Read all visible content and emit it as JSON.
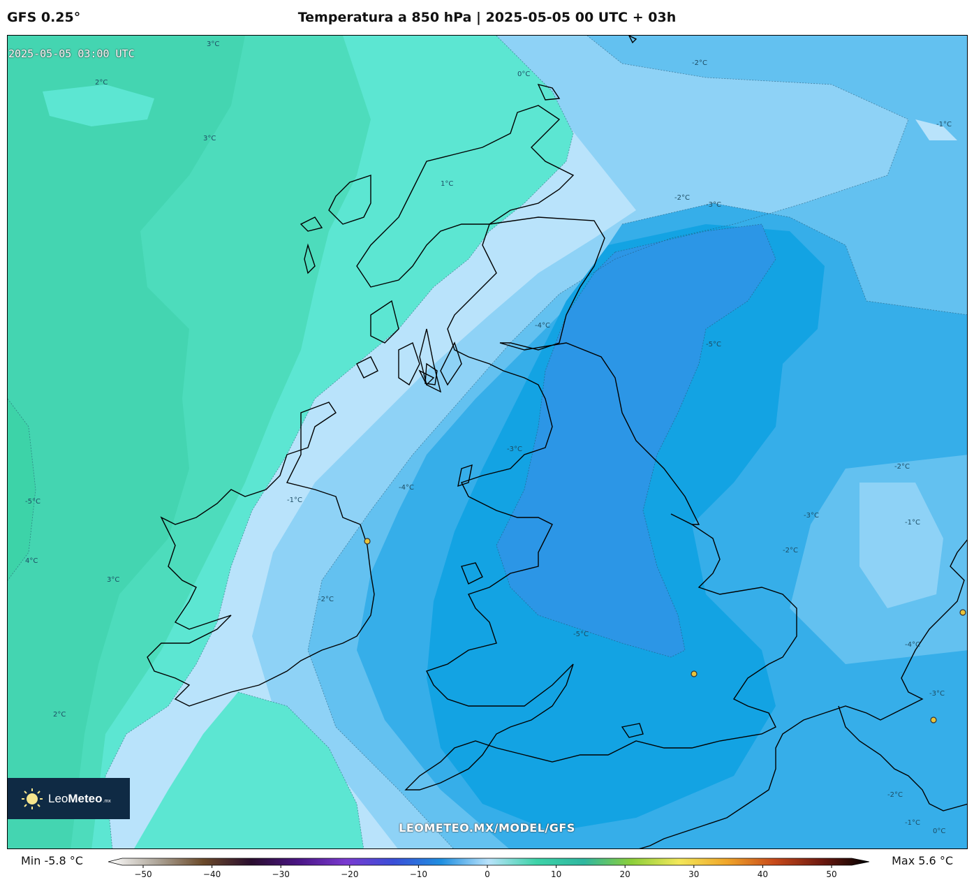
{
  "header": {
    "model": "GFS 0.25°",
    "title": "Temperatura a 850 hPa | 2025-05-05 00 UTC + 03h"
  },
  "map": {
    "valid_time": "2025-05-05 03:00 UTC",
    "watermark": "LEOMETEO.MX/MODEL/GFS",
    "logo": {
      "name_light": "Leo",
      "name_bold": "Meteo",
      "suffix": ".mx"
    },
    "contour_labels": [
      "3°C",
      "2°C",
      "0°C",
      "-2°C",
      "-1°C",
      "3°C",
      "1°C",
      "-2°C",
      "-3°C",
      "-5°C",
      "-4°C",
      "-3°C",
      "-4°C",
      "-1°C",
      "-2°C",
      "-3°C",
      "-2°C",
      "-1°C",
      "-5°C",
      "4°C",
      "3°C",
      "-2°C",
      "-5°C",
      "-4°C",
      "-3°C",
      "2°C",
      "-2°C",
      "-1°C",
      "0°C"
    ],
    "colors": {
      "warm3": "#3dd3a8",
      "warm2": "#4ddcbc",
      "warm1": "#5ce6d2",
      "zero": "#b9e3fb",
      "neg1": "#8ed2f6",
      "neg2": "#63c1f0",
      "neg3": "#36aee9",
      "neg4": "#13a3e3",
      "neg5": "#2c96e6"
    }
  },
  "colorbar": {
    "min_label": "Min -5.8 °C",
    "max_label": "Max 5.6 °C",
    "ticks": [
      "−50",
      "−40",
      "−30",
      "−20",
      "−10",
      "0",
      "10",
      "20",
      "30",
      "40",
      "50"
    ],
    "stops": [
      "#ffffff",
      "#b0a89c",
      "#6b4a2a",
      "#2a0e2e",
      "#4a1585",
      "#7a3ad0",
      "#3a4fd8",
      "#1f8fe0",
      "#b9e3fb",
      "#3dd3a8",
      "#2fb7a0",
      "#8ccf3a",
      "#f3e85a",
      "#f0a62a",
      "#c84a1a",
      "#6e1a10",
      "#000000"
    ]
  },
  "cities": [
    "city-dot-dublin",
    "city-dot-london",
    "city-dot-amsterdam",
    "city-dot-brussels"
  ]
}
